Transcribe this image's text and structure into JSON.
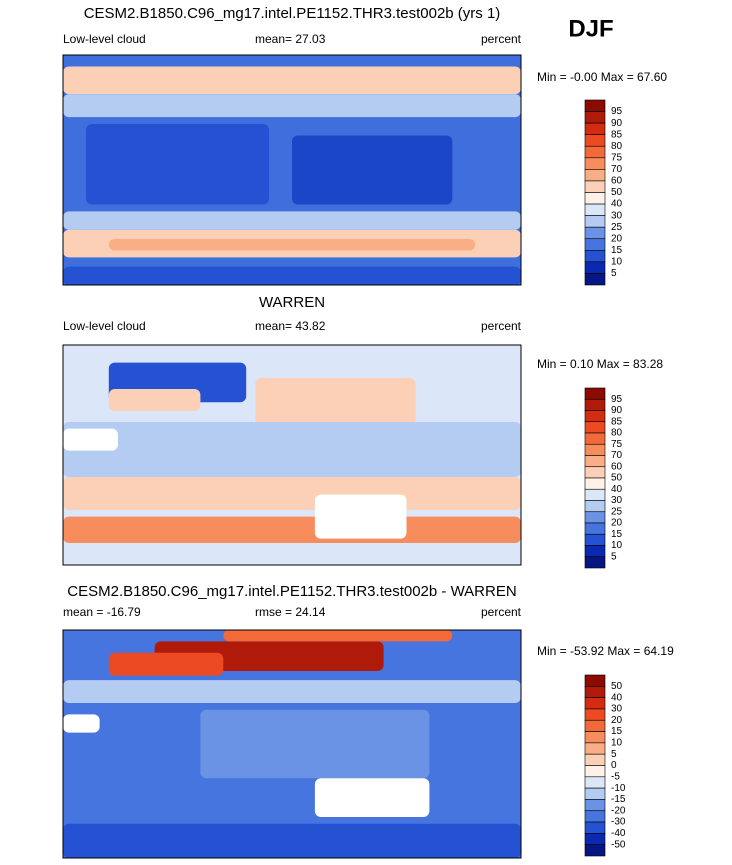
{
  "header": {
    "season": "DJF"
  },
  "panels": [
    {
      "title": "CESM2.B1850.C96_mg17.intel.PE1152.THR3.test002b (yrs 1)",
      "left": "Low-level cloud",
      "center": "mean=  27.03",
      "right": "percent",
      "minmax": "Min = -0.00 Max = 67.60",
      "colorbar": {
        "colors": [
          "#8c0a00",
          "#b01a0a",
          "#d42c10",
          "#eb4a22",
          "#f36a3a",
          "#f78d5c",
          "#f9ae86",
          "#fbd0b6",
          "#fdf1e8",
          "#dbe6f8",
          "#b4cbf2",
          "#6a93e6",
          "#4775df",
          "#2552d2",
          "#0b28b0",
          "#061685"
        ],
        "labels": [
          95,
          90,
          85,
          80,
          75,
          70,
          60,
          50,
          40,
          30,
          25,
          20,
          15,
          10,
          5
        ]
      }
    },
    {
      "title": "WARREN",
      "left": "Low-level cloud",
      "center": "mean=  43.82",
      "right": "percent",
      "minmax": "Min =  0.10 Max = 83.28",
      "colorbar": {
        "colors": [
          "#8c0a00",
          "#b01a0a",
          "#d42c10",
          "#eb4a22",
          "#f36a3a",
          "#f78d5c",
          "#f9ae86",
          "#fbd0b6",
          "#fdf1e8",
          "#dbe6f8",
          "#b4cbf2",
          "#6a93e6",
          "#4775df",
          "#2552d2",
          "#0b28b0",
          "#061685"
        ],
        "labels": [
          95,
          90,
          85,
          80,
          75,
          70,
          60,
          50,
          40,
          30,
          25,
          20,
          15,
          10,
          5
        ]
      }
    },
    {
      "title": "CESM2.B1850.C96_mg17.intel.PE1152.THR3.test002b - WARREN",
      "left": "mean = -16.79",
      "center": "rmse = 24.14",
      "right": "percent",
      "minmax": "Min = -53.92 Max =  64.19",
      "colorbar": {
        "colors": [
          "#8c0a00",
          "#b01a0a",
          "#d42c10",
          "#eb4a22",
          "#f36a3a",
          "#f78d5c",
          "#f9ae86",
          "#fbd0b6",
          "#fdf1e8",
          "#dbe6f8",
          "#b4cbf2",
          "#6a93e6",
          "#4775df",
          "#2552d2",
          "#0b28b0",
          "#061685"
        ],
        "labels": [
          50,
          40,
          30,
          20,
          15,
          10,
          5,
          0,
          -5,
          -10,
          -15,
          -20,
          -30,
          -40,
          -50
        ]
      }
    }
  ]
}
